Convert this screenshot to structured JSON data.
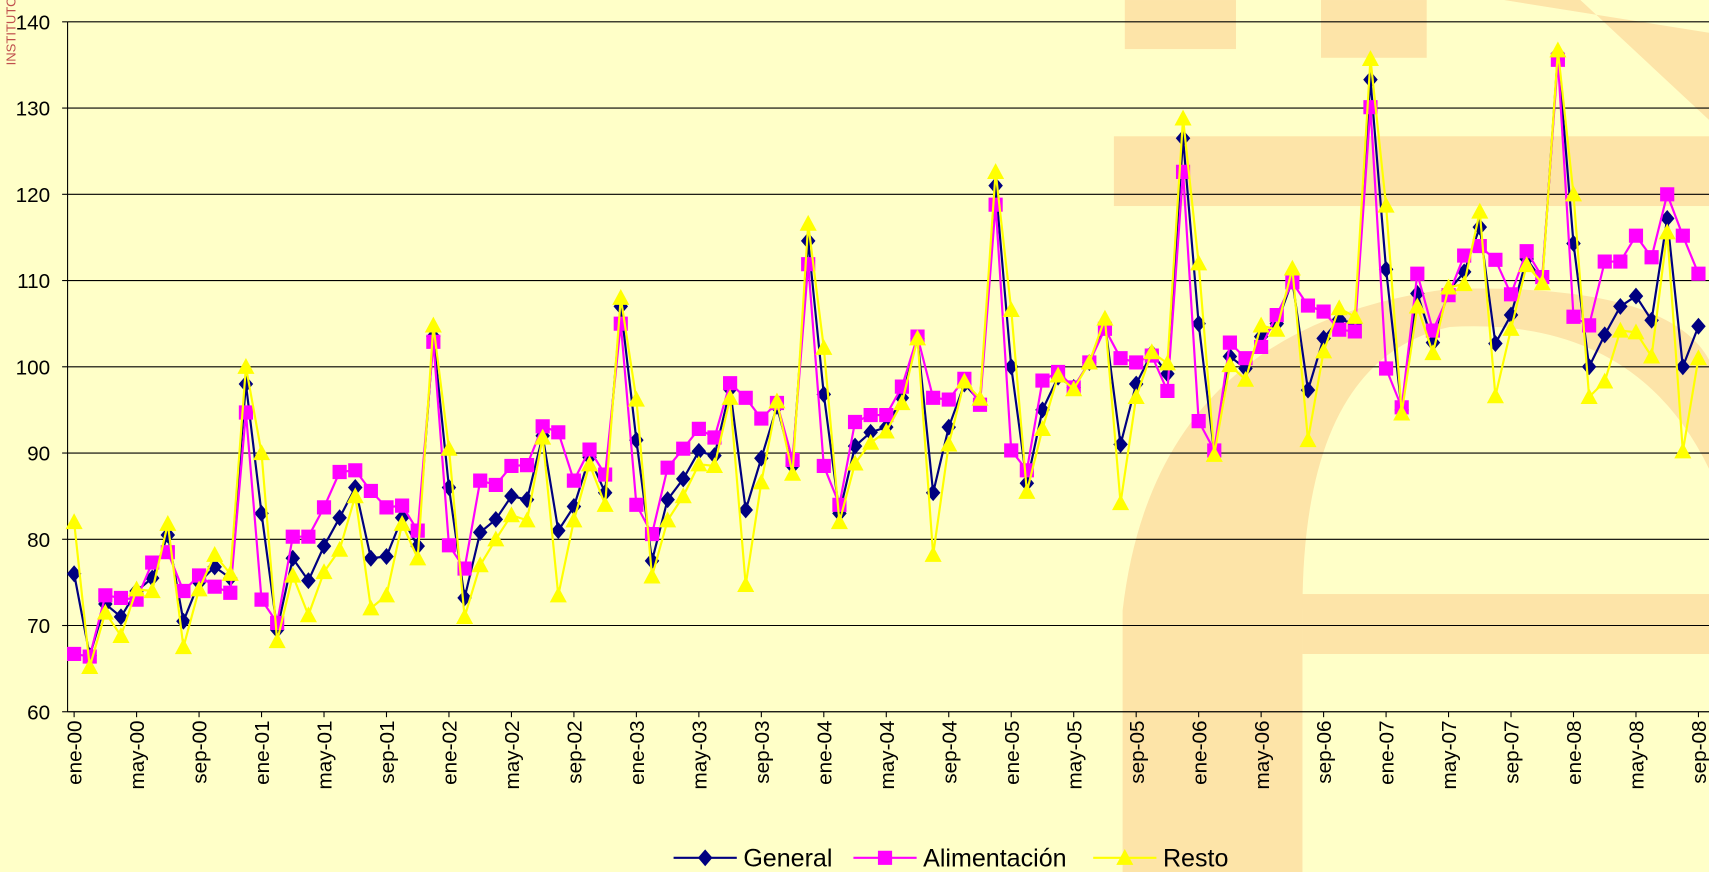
{
  "watermark": "INSTITUTO N",
  "chart_data": {
    "type": "line",
    "categories": [
      "ene-00",
      null,
      null,
      null,
      "may-00",
      null,
      null,
      null,
      "sep-00",
      null,
      null,
      null,
      "ene-01",
      null,
      null,
      null,
      "may-01",
      null,
      null,
      null,
      "sep-01",
      null,
      null,
      null,
      "ene-02",
      null,
      null,
      null,
      "may-02",
      null,
      null,
      null,
      "sep-02",
      null,
      null,
      null,
      "ene-03",
      null,
      null,
      null,
      "may-03",
      null,
      null,
      null,
      "sep-03",
      null,
      null,
      null,
      "ene-04",
      null,
      null,
      null,
      "may-04",
      null,
      null,
      null,
      "sep-04",
      null,
      null,
      null,
      "ene-05",
      null,
      null,
      null,
      "may-05",
      null,
      null,
      null,
      "sep-05",
      null,
      null,
      null,
      "ene-06",
      null,
      null,
      null,
      "may-06",
      null,
      null,
      null,
      "sep-06",
      null,
      null,
      null,
      "ene-07",
      null,
      null,
      null,
      "may-07",
      null,
      null,
      null,
      "sep-07",
      null,
      null,
      null,
      "ene-08",
      null,
      null,
      null,
      "may-08",
      null,
      null,
      null,
      "sep-08"
    ],
    "series": [
      {
        "name": "General",
        "color": "#000080",
        "marker": "diamond",
        "values": [
          76,
          66.5,
          72.5,
          71,
          74,
          75.5,
          80.5,
          70.5,
          75,
          76.8,
          75.5,
          98,
          83,
          69.5,
          77.8,
          75.2,
          79.2,
          82.5,
          86,
          77.8,
          78,
          82.5,
          79.2,
          103.5,
          86,
          73.2,
          80.8,
          82.3,
          85,
          84.6,
          92,
          81,
          83.8,
          89.5,
          85.4,
          107,
          91.5,
          77.5,
          84.6,
          87,
          90.2,
          89.7,
          97.4,
          83.4,
          89.4,
          95.4,
          88.5,
          114.6,
          96.8,
          83,
          90.8,
          92.4,
          93,
          96.4,
          103.3,
          85.4,
          93,
          98,
          96,
          121,
          100,
          86.5,
          95,
          98.8,
          97.6,
          100.5,
          105,
          91,
          98,
          101.6,
          99.2,
          126.5,
          105,
          90,
          101.2,
          99.8,
          103.5,
          105,
          110,
          97.3,
          103.3,
          105.5,
          105,
          133.3,
          111.3,
          95,
          108.5,
          102.8,
          108.8,
          111,
          116.2,
          102.7,
          106,
          112.5,
          110,
          136.3,
          114.3,
          100,
          103.7,
          107,
          108.2,
          105.4,
          117.2,
          100,
          104.7
        ]
      },
      {
        "name": "Alimentación",
        "color": "#ff00ff",
        "marker": "square",
        "values": [
          66.7,
          66.4,
          73.5,
          73.2,
          73,
          77.3,
          78.5,
          74,
          75.8,
          74.5,
          73.8,
          94.7,
          73,
          70.3,
          80.3,
          80.3,
          83.7,
          87.8,
          88,
          85.6,
          83.7,
          83.9,
          81,
          102.9,
          79.3,
          76.6,
          86.8,
          86.3,
          88.5,
          88.6,
          93.1,
          92.4,
          86.8,
          90.4,
          87.5,
          105,
          84,
          80.6,
          88.3,
          90.5,
          92.8,
          91.8,
          98.1,
          96.4,
          94,
          95.8,
          89.2,
          111.9,
          88.5,
          84,
          93.6,
          94.4,
          94.4,
          97.7,
          103.5,
          96.4,
          96.2,
          98.6,
          95.6,
          118.8,
          90.3,
          88,
          98.4,
          99.4,
          97.6,
          100.5,
          104.4,
          101,
          100.5,
          101.3,
          97.2,
          122.6,
          93.7,
          90.3,
          102.8,
          101,
          102.3,
          106,
          109.8,
          107.1,
          106.4,
          104.3,
          104.1,
          130.1,
          99.8,
          95.3,
          110.8,
          104.2,
          108.3,
          112.9,
          114,
          112.4,
          108.4,
          113.4,
          110.4,
          135.6,
          105.8,
          104.8,
          112.2,
          112.2,
          115.2,
          112.7,
          120,
          115.2,
          110.8
        ]
      },
      {
        "name": "Resto",
        "color": "#ffff00",
        "marker": "triangle",
        "values": [
          82,
          65.2,
          71.5,
          68.8,
          74.2,
          74,
          81.8,
          67.5,
          74.2,
          78.2,
          76,
          100,
          90,
          68.2,
          75.8,
          71.2,
          76.2,
          78.8,
          85,
          72,
          73.5,
          81.8,
          77.8,
          104.8,
          90.5,
          71,
          77,
          80,
          82.8,
          82.2,
          91.8,
          73.5,
          82.2,
          88.7,
          84,
          108,
          96.2,
          75.7,
          82.2,
          85,
          88.7,
          88.5,
          96.4,
          74.7,
          86.6,
          96,
          87.6,
          116.6,
          102.2,
          82,
          88.8,
          91.2,
          92.5,
          95.8,
          103.3,
          78.2,
          91,
          98.3,
          96.3,
          122.6,
          106.6,
          85.5,
          92.8,
          99,
          97.4,
          100.5,
          105.6,
          84.2,
          96.5,
          101.7,
          100.4,
          128.8,
          112,
          89.8,
          100.2,
          98.5,
          104.8,
          104.3,
          111.4,
          91.5,
          101.8,
          106.8,
          105.8,
          135.7,
          118.7,
          94.6,
          107,
          101.6,
          109.2,
          109.6,
          118,
          96.6,
          104.4,
          111.8,
          109.7,
          136.7,
          120,
          96.5,
          98.3,
          104.2,
          104,
          101.2,
          115.6,
          90.2,
          101
        ]
      }
    ],
    "ylim": [
      60,
      140
    ],
    "yticks": [
      60,
      70,
      80,
      90,
      100,
      110,
      120,
      130,
      140
    ],
    "grid": true,
    "legend": "bottom"
  }
}
